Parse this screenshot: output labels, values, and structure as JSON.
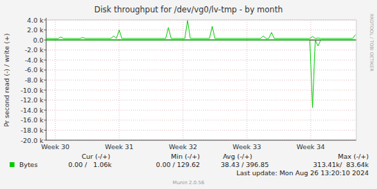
{
  "chart_data": {
    "type": "line",
    "title": "Disk throughput for /dev/vg0/lv-tmp - by month",
    "y_label": "Pr second read (-) / write (+)",
    "watermark": "RRDTOOL / TOBI OETIKER",
    "x": [
      0,
      1.3,
      1.6,
      1.9,
      3.7,
      4.0,
      4.3,
      7.1,
      7.4,
      7.7,
      8.0,
      8.3,
      13.1,
      13.4,
      13.7,
      15.2,
      15.5,
      15.8,
      17.9,
      18.2,
      18.5,
      23.5,
      23.8,
      24.1,
      24.4,
      24.7,
      25.0,
      28.9,
      29.2,
      29.5,
      29.8,
      30.1,
      33.6,
      33.9
    ],
    "series": [
      {
        "name": "Bytes",
        "color": "#00cc00",
        "values": [
          300,
          280,
          600,
          300,
          290,
          500,
          300,
          310,
          800,
          300,
          2000,
          300,
          300,
          2500,
          300,
          300,
          3900,
          300,
          300,
          2700,
          300,
          300,
          800,
          300,
          300,
          1500,
          300,
          300,
          700,
          300,
          400,
          300,
          300,
          1060
        ]
      },
      {
        "color": "#00cc00",
        "values": [
          0,
          0,
          0,
          0,
          0,
          0,
          0,
          0,
          0,
          0,
          0,
          0,
          0,
          0,
          0,
          0,
          0,
          0,
          0,
          0,
          0,
          0,
          0,
          0,
          0,
          0,
          0,
          0,
          -13500,
          0,
          -1200,
          0,
          0,
          0
        ]
      }
    ],
    "xlim": [
      0,
      34
    ],
    "xticks": [
      {
        "value": 1,
        "label": "Week 30"
      },
      {
        "value": 8,
        "label": "Week 31"
      },
      {
        "value": 15,
        "label": "Week 32"
      },
      {
        "value": 22,
        "label": "Week 33"
      },
      {
        "value": 29,
        "label": "Week 34"
      }
    ],
    "ylim": [
      -20000,
      4000
    ],
    "yticks": [
      {
        "value": 4000,
        "label": "4.0 k"
      },
      {
        "value": 2000,
        "label": "2.0 k"
      },
      {
        "value": 0,
        "label": "0.0"
      },
      {
        "value": -2000,
        "label": "-2.0 k"
      },
      {
        "value": -4000,
        "label": "-4.0 k"
      },
      {
        "value": -6000,
        "label": "-6.0 k"
      },
      {
        "value": -8000,
        "label": "-8.0 k"
      },
      {
        "value": -10000,
        "label": "-10.0 k"
      },
      {
        "value": -12000,
        "label": "-12.0 k"
      },
      {
        "value": -14000,
        "label": "-14.0 k"
      },
      {
        "value": -16000,
        "label": "-16.0 k"
      },
      {
        "value": -18000,
        "label": "-18.0 k"
      },
      {
        "value": -20000,
        "label": "-20.0 k"
      }
    ],
    "grid": true,
    "stats": {
      "columns": [
        "Cur (-/+)",
        "Min (-/+)",
        "Avg (-/+)",
        "Max (-/+)"
      ],
      "values": [
        "0.00 /   1.06k",
        "0.00 / 129.62",
        "38.43 / 396.85",
        "313.41k/  83.64k"
      ]
    },
    "last_update": "Last update: Mon Aug 26 13:20:10 2024",
    "credit": "Munin 2.0.56"
  }
}
